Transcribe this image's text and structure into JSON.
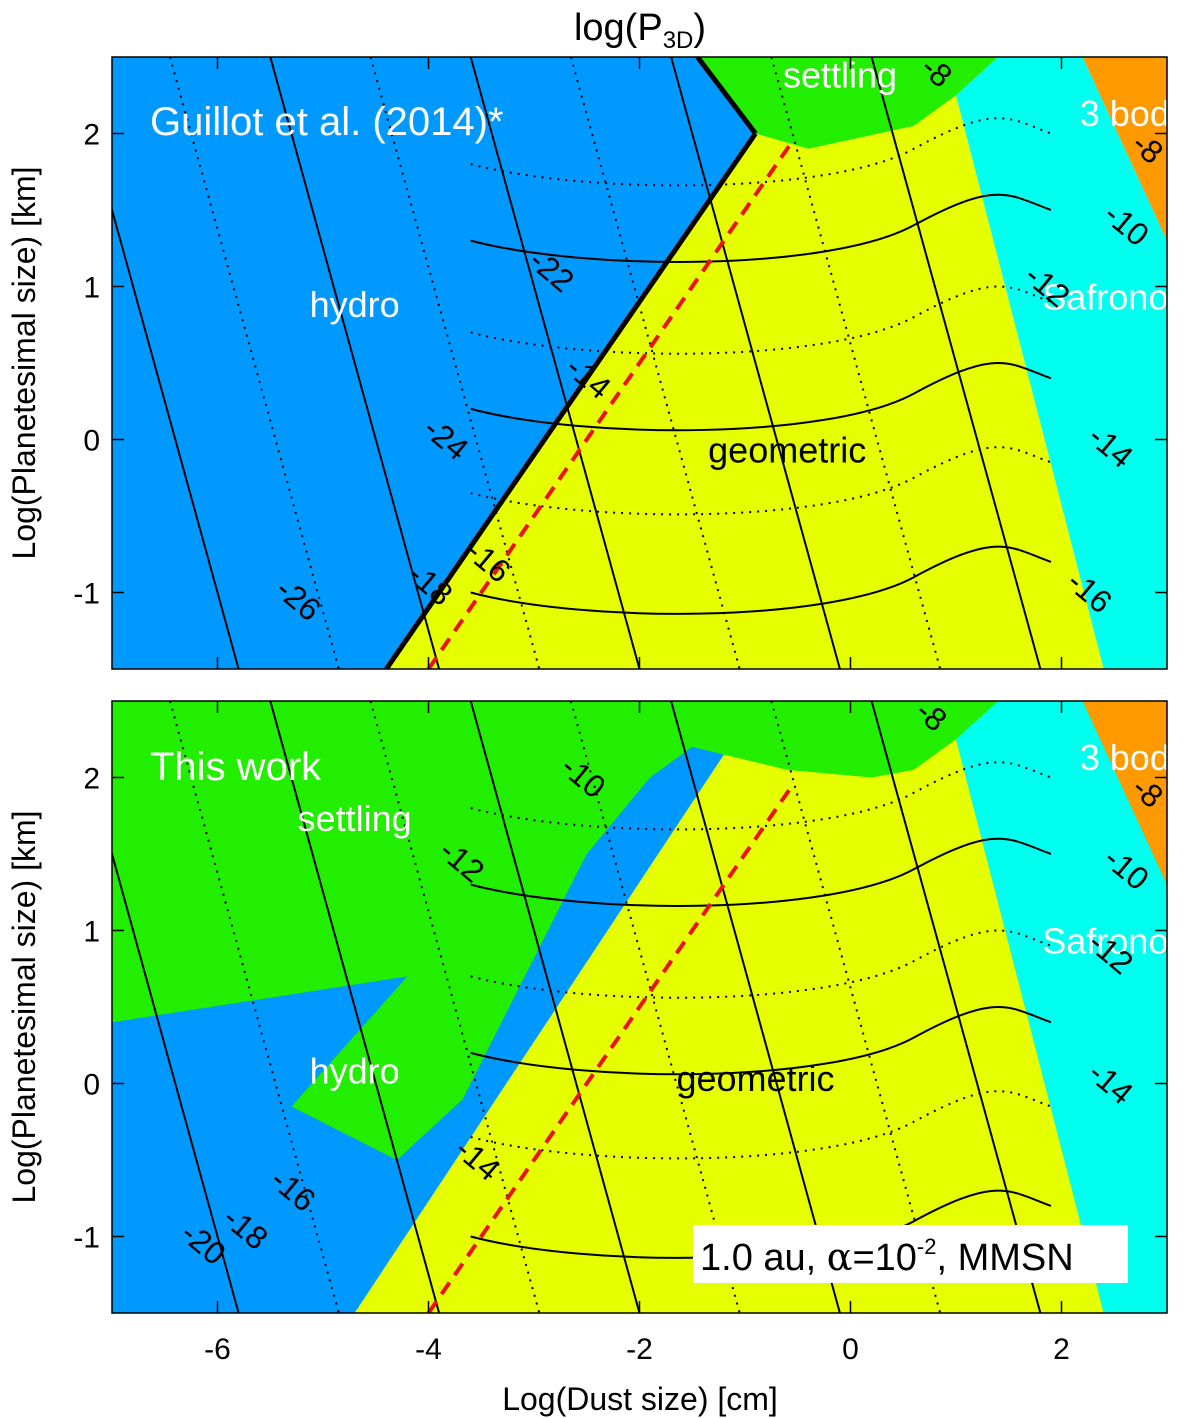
{
  "chart_data": {
    "type": "heatmap",
    "title_main": "log(P",
    "title_sub": "3D",
    "title_close": ")",
    "xlabel": "Log(Dust size) [cm]",
    "ylabel": "Log(Planetesimal size) [km]",
    "xlim": [
      -7,
      3
    ],
    "ylim": [
      -1.5,
      2.5
    ],
    "xticks": [
      -6,
      -4,
      -2,
      0,
      2
    ],
    "yticks": [
      -1,
      0,
      1,
      2
    ],
    "regime_colors": {
      "hydro": "#0099ff",
      "settling": "#22ee00",
      "geometric": "#e6ff00",
      "safronov": "#00ffee",
      "three_body": "#ff9900",
      "boundary_line": "#ee1111"
    },
    "panels": [
      {
        "id": "top",
        "annotation": "Guillot et al. (2014)*",
        "regions": [
          {
            "regime": "hydro",
            "polygon": [
              [
                -7,
                -1.5
              ],
              [
                -4.4,
                -1.5
              ],
              [
                -0.9,
                2.0
              ],
              [
                -1.45,
                2.5
              ],
              [
                -7,
                2.5
              ]
            ]
          },
          {
            "regime": "geometric",
            "polygon": [
              [
                -4.4,
                -1.5
              ],
              [
                2.4,
                -1.5
              ],
              [
                1.0,
                2.25
              ],
              [
                0.6,
                2.05
              ],
              [
                -0.4,
                1.9
              ],
              [
                -0.9,
                2.0
              ]
            ]
          },
          {
            "regime": "settling",
            "polygon": [
              [
                -1.45,
                2.5
              ],
              [
                -0.9,
                2.0
              ],
              [
                -0.4,
                1.9
              ],
              [
                0.6,
                2.05
              ],
              [
                1.0,
                2.25
              ],
              [
                1.4,
                2.5
              ]
            ]
          },
          {
            "regime": "safronov",
            "polygon": [
              [
                2.4,
                -1.5
              ],
              [
                3,
                -1.5
              ],
              [
                3,
                1.3
              ],
              [
                2.2,
                2.5
              ],
              [
                1.4,
                2.5
              ],
              [
                1.0,
                2.25
              ]
            ]
          },
          {
            "regime": "three_body",
            "polygon": [
              [
                2.2,
                2.5
              ],
              [
                3,
                1.3
              ],
              [
                3,
                2.5
              ]
            ]
          }
        ],
        "region_labels": [
          {
            "text": "hydro",
            "x": -4.7,
            "y": 0.8,
            "color": "#ffffff"
          },
          {
            "text": "geometric",
            "x": -0.6,
            "y": -0.15,
            "color": "#000000"
          },
          {
            "text": "settling",
            "x": -0.1,
            "y": 2.3,
            "color": "#ffffff"
          },
          {
            "text": "Safronov",
            "x": 2.5,
            "y": 0.85,
            "color": "#ffffff"
          },
          {
            "text": "3 bod",
            "x": 2.6,
            "y": 2.05,
            "color": "#ffffff"
          }
        ],
        "contour_labels": [
          {
            "text": "-26",
            "x": -5.3,
            "y": -1.1
          },
          {
            "text": "-24",
            "x": -3.9,
            "y": -0.05
          },
          {
            "text": "-22",
            "x": -2.9,
            "y": 1.05
          },
          {
            "text": "-14",
            "x": -2.55,
            "y": 0.35
          },
          {
            "text": "-16",
            "x": -3.5,
            "y": -0.85
          },
          {
            "text": "-18",
            "x": -4.05,
            "y": -1.0
          },
          {
            "text": "-8",
            "x": 0.75,
            "y": 2.35
          },
          {
            "text": "-8",
            "x": 2.75,
            "y": 1.85
          },
          {
            "text": "-10",
            "x": 2.55,
            "y": 1.35
          },
          {
            "text": "-12",
            "x": 1.8,
            "y": 0.95
          },
          {
            "text": "-14",
            "x": 2.4,
            "y": -0.1
          },
          {
            "text": "-16",
            "x": 2.2,
            "y": -1.05
          }
        ]
      },
      {
        "id": "bottom",
        "annotation": "This work",
        "regions": [
          {
            "regime": "settling",
            "polygon": [
              [
                -7,
                -1.5
              ],
              [
                3,
                -1.5
              ],
              [
                3,
                2.5
              ],
              [
                -7,
                2.5
              ]
            ]
          },
          {
            "regime": "hydro",
            "polygon": [
              [
                -7,
                -1.5
              ],
              [
                -4.7,
                -1.5
              ],
              [
                -2.5,
                1.5
              ],
              [
                -1.9,
                2.0
              ],
              [
                -1.5,
                2.2
              ],
              [
                -1.2,
                2.15
              ],
              [
                -2.0,
                1.2
              ],
              [
                -3.2,
                0.2
              ],
              [
                -4.3,
                -0.5
              ],
              [
                -5.3,
                -0.15
              ],
              [
                -4.2,
                0.7
              ],
              [
                -7,
                0.4
              ]
            ]
          },
          {
            "regime": "hydro",
            "polygon": [
              [
                -7,
                -1.5
              ],
              [
                -4.7,
                -1.5
              ],
              [
                -2.5,
                1.5
              ],
              [
                -1.2,
                2.15
              ],
              [
                -0.8,
                1.6
              ],
              [
                -2.0,
                0.5
              ],
              [
                -3.0,
                -0.4
              ],
              [
                -3.8,
                -1.0
              ],
              [
                -4.7,
                -1.5
              ]
            ]
          },
          {
            "regime": "geometric",
            "polygon": [
              [
                -4.7,
                -1.5
              ],
              [
                2.4,
                -1.5
              ],
              [
                1.0,
                2.25
              ],
              [
                0.6,
                2.05
              ],
              [
                0.2,
                2.0
              ],
              [
                -0.6,
                2.05
              ],
              [
                -1.2,
                2.15
              ]
            ]
          },
          {
            "regime": "safronov",
            "polygon": [
              [
                2.4,
                -1.5
              ],
              [
                3,
                -1.5
              ],
              [
                3,
                1.3
              ],
              [
                2.2,
                2.5
              ],
              [
                1.4,
                2.5
              ],
              [
                1.0,
                2.25
              ]
            ]
          },
          {
            "regime": "three_body",
            "polygon": [
              [
                2.2,
                2.5
              ],
              [
                3,
                1.3
              ],
              [
                3,
                2.5
              ]
            ]
          }
        ],
        "region_labels": [
          {
            "text": "settling",
            "x": -4.7,
            "y": 1.65,
            "color": "#ffffff"
          },
          {
            "text": "hydro",
            "x": -4.7,
            "y": 0.0,
            "color": "#ffffff"
          },
          {
            "text": "geometric",
            "x": -0.9,
            "y": -0.05,
            "color": "#000000"
          },
          {
            "text": "Safronov",
            "x": 2.5,
            "y": 0.85,
            "color": "#ffffff"
          },
          {
            "text": "3 bod",
            "x": 2.6,
            "y": 2.05,
            "color": "#ffffff"
          }
        ],
        "contour_labels": [
          {
            "text": "-10",
            "x": -2.6,
            "y": 1.95
          },
          {
            "text": "-12",
            "x": -3.75,
            "y": 1.4
          },
          {
            "text": "-14",
            "x": -3.6,
            "y": -0.55
          },
          {
            "text": "-16",
            "x": -5.35,
            "y": -0.75
          },
          {
            "text": "-18",
            "x": -5.8,
            "y": -1.0
          },
          {
            "text": "-20",
            "x": -6.2,
            "y": -1.1
          },
          {
            "text": "-8",
            "x": 0.7,
            "y": 2.35
          },
          {
            "text": "-8",
            "x": 2.75,
            "y": 1.85
          },
          {
            "text": "-10",
            "x": 2.55,
            "y": 1.35
          },
          {
            "text": "-12",
            "x": 2.4,
            "y": 0.8
          },
          {
            "text": "-14",
            "x": 2.4,
            "y": -0.05
          }
        ],
        "info_box": {
          "prefix": "1.0 au, ",
          "alpha": "α",
          "eq": "=10",
          "exp": "-2",
          "suffix": ", MMSN"
        }
      }
    ]
  }
}
